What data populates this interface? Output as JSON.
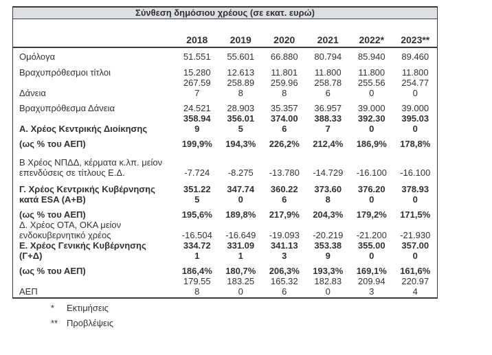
{
  "title": "Σύνθεση δημόσιου χρέους (σε εκατ. ευρώ)",
  "columns": [
    "2018",
    "2019",
    "2020",
    "2021",
    "2022*",
    "2023**"
  ],
  "rows": [
    {
      "label": "Ομόλογα",
      "bold": false,
      "values": [
        "51.551",
        "55.601",
        "66.880",
        "80.794",
        "85.940",
        "89.460"
      ]
    },
    {
      "label": "Βραχυπρόθεσμοι τίτλοι",
      "bold": false,
      "values": [
        "15.280",
        "12.613",
        "11.801",
        "11.800",
        "11.800",
        "11.800"
      ]
    },
    {
      "label": "Δάνεια",
      "bold": false,
      "values": [
        "267.59\n7",
        "258.89\n8",
        "259.96\n8",
        "258.78\n6",
        "255.56\n0",
        "254.77\n0"
      ]
    },
    {
      "label": "Βραχυπρόθεσμα Δάνεια",
      "bold": false,
      "values": [
        "24.521",
        "28.903",
        "35.357",
        "36.957",
        "39.000",
        "39.000"
      ]
    },
    {
      "label": "Α. Χρέος Κεντρικής Διοίκησης",
      "bold": true,
      "values": [
        "358.94\n9",
        "356.01\n5",
        "374.00\n6",
        "388.33\n7",
        "392.30\n0",
        "395.03\n0"
      ]
    },
    {
      "label": "(ως % του ΑΕΠ)",
      "bold": true,
      "values": [
        "199,9%",
        "194,3%",
        "226,2%",
        "212,4%",
        "186,9%",
        "178,8%"
      ]
    },
    {
      "label": "Β Χρέος ΝΠΔΔ, κέρματα κ.λπ. μείον\nεπενδύσεις σε τίτλους Ε.Δ.",
      "bold": false,
      "values": [
        "-7.724",
        "-8.275",
        "-13.780",
        "-14.729",
        "-16.100",
        "-16.100"
      ]
    },
    {
      "label": "Γ. Χρέος Κεντρικής Κυβέρνησης\nκατά ESA (Α+Β)",
      "bold": true,
      "values": [
        "351.22\n5",
        "347.74\n0",
        "360.22\n6",
        "373.60\n8",
        "376.20\n0",
        "378.93\n0"
      ]
    },
    {
      "label": "(ως % του ΑΕΠ)",
      "bold": true,
      "values": [
        "195,6%",
        "189,8%",
        "217,9%",
        "204,3%",
        "179,2%",
        "171,5%"
      ]
    },
    {
      "label": "Δ. Χρέος ΟΤΑ, ΟΚΑ μείον\nενδοκυβερνητικό χρέος",
      "bold": false,
      "values": [
        "-16.504",
        "-16.649",
        "-19.093",
        "-20.219",
        "-21.200",
        "-21.930"
      ]
    },
    {
      "label": "Ε. Χρέος Γενικής Κυβέρνησης\n(Γ+Δ)",
      "bold": true,
      "values": [
        "334.72\n1",
        "331.09\n1",
        "341.13\n3",
        "353.38\n9",
        "355.00\n0",
        "357.00\n0"
      ]
    },
    {
      "label": "(ως % του ΑΕΠ)",
      "bold": true,
      "values": [
        "186,4%",
        "180,7%",
        "206,3%",
        "193,3%",
        "169,1%",
        "161,6%"
      ]
    },
    {
      "label": "ΑΕΠ",
      "bold": false,
      "values": [
        "179.55\n8",
        "183.25\n0",
        "165.32\n6",
        "182.83\n0",
        "209.94\n3",
        "220.97\n4"
      ]
    }
  ],
  "footnotes": [
    {
      "marker": "*",
      "text": "Εκτιμήσεις"
    },
    {
      "marker": "**",
      "text": "Προβλέψεις"
    }
  ],
  "colors": {
    "title_bg": "#dce0e5",
    "border": "#3a3a3a",
    "text": "#313131"
  }
}
